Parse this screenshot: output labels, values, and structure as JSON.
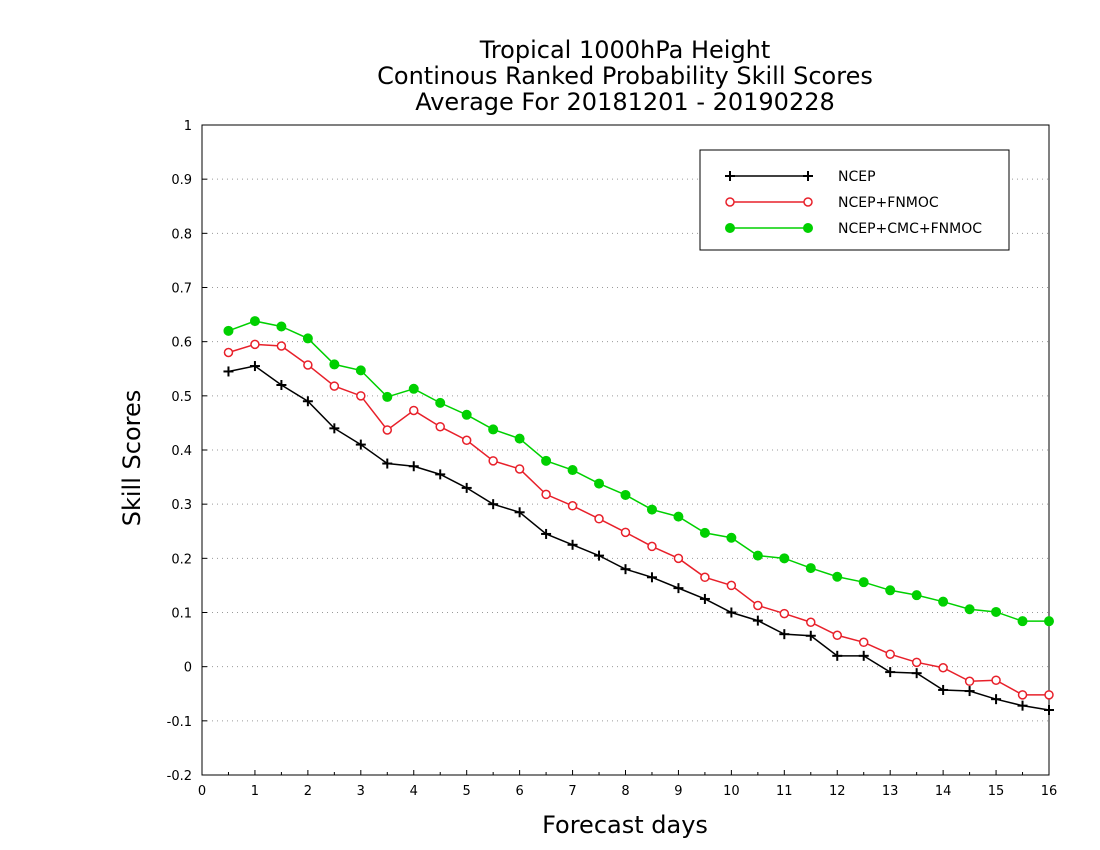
{
  "chart_data": {
    "type": "line",
    "title_lines": [
      "Tropical 1000hPa Height",
      "Continous Ranked Probability Skill Scores",
      "Average For 20181201 - 20190228"
    ],
    "xlabel": "Forecast days",
    "ylabel": "Skill Scores",
    "xlim": [
      0,
      16
    ],
    "ylim": [
      -0.2,
      1
    ],
    "x_ticks": [
      "0",
      "1",
      "2",
      "3",
      "4",
      "5",
      "6",
      "7",
      "8",
      "9",
      "10",
      "11",
      "12",
      "13",
      "14",
      "15",
      "16"
    ],
    "y_ticks": [
      "-0.2",
      "-0.1",
      "0",
      "0.1",
      "0.2",
      "0.3",
      "0.4",
      "0.5",
      "0.6",
      "0.7",
      "0.8",
      "0.9",
      "1"
    ],
    "grid": "horizontal dotted",
    "legend_position": "top-right",
    "x": [
      0.5,
      1,
      1.5,
      2,
      2.5,
      3,
      3.5,
      4,
      4.5,
      5,
      5.5,
      6,
      6.5,
      7,
      7.5,
      8,
      8.5,
      9,
      9.5,
      10,
      10.5,
      11,
      11.5,
      12,
      12.5,
      13,
      13.5,
      14,
      14.5,
      15,
      15.5,
      16
    ],
    "series": [
      {
        "name": "NCEP",
        "color": "#000000",
        "marker": "plus",
        "values": [
          0.545,
          0.555,
          0.52,
          0.49,
          0.44,
          0.41,
          0.375,
          0.37,
          0.355,
          0.33,
          0.3,
          0.285,
          0.245,
          0.225,
          0.205,
          0.18,
          0.165,
          0.145,
          0.125,
          0.1,
          0.085,
          0.06,
          0.057,
          0.02,
          0.02,
          -0.01,
          -0.012,
          -0.043,
          -0.045,
          -0.06,
          -0.072,
          -0.08
        ]
      },
      {
        "name": "NCEP+FNMOC",
        "color": "#e8202a",
        "marker": "open-circle",
        "values": [
          0.58,
          0.595,
          0.592,
          0.557,
          0.518,
          0.5,
          0.437,
          0.473,
          0.443,
          0.418,
          0.38,
          0.365,
          0.318,
          0.297,
          0.273,
          0.248,
          0.222,
          0.2,
          0.165,
          0.15,
          0.113,
          0.098,
          0.082,
          0.058,
          0.045,
          0.023,
          0.008,
          -0.002,
          -0.027,
          -0.025,
          -0.052,
          -0.052
        ]
      },
      {
        "name": "NCEP+CMC+FNMOC",
        "color": "#00d000",
        "marker": "filled-circle",
        "values": [
          0.62,
          0.638,
          0.628,
          0.606,
          0.558,
          0.547,
          0.498,
          0.513,
          0.487,
          0.465,
          0.438,
          0.421,
          0.38,
          0.363,
          0.338,
          0.317,
          0.29,
          0.277,
          0.247,
          0.238,
          0.205,
          0.2,
          0.182,
          0.166,
          0.156,
          0.141,
          0.132,
          0.12,
          0.106,
          0.101,
          0.084,
          0.084
        ]
      }
    ]
  }
}
